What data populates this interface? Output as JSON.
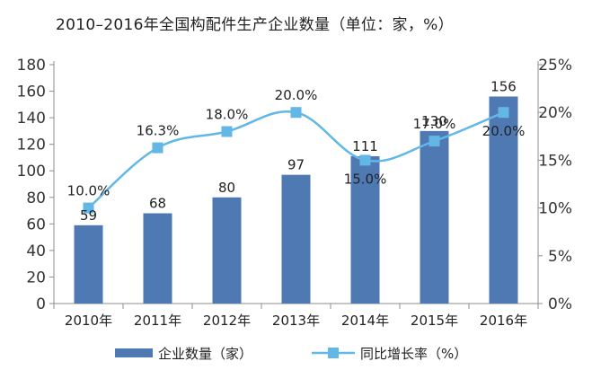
{
  "chart_data": {
    "type": "bar",
    "title": "2010–2016年全国构配件生产企业数量（单位：家，%）",
    "categories": [
      "2010年",
      "2011年",
      "2012年",
      "2013年",
      "2014年",
      "2015年",
      "2016年"
    ],
    "series": [
      {
        "name": "企业数量（家）",
        "type": "bar",
        "axis": "left",
        "values": [
          59,
          68,
          80,
          97,
          111,
          130,
          156
        ],
        "labels": [
          "59",
          "68",
          "80",
          "97",
          "111",
          "130",
          "156"
        ],
        "color": "#4f79b3"
      },
      {
        "name": "同比增长率（%）",
        "type": "line",
        "axis": "right",
        "values": [
          10.0,
          16.3,
          18.0,
          20.0,
          15.0,
          17.0,
          20.0
        ],
        "labels": [
          "10.0%",
          "16.3%",
          "18.0%",
          "20.0%",
          "15.0%",
          "17.0%",
          "20.0%"
        ],
        "color": "#62b7e6"
      }
    ],
    "y_left": {
      "min": 0,
      "max": 180,
      "step": 20,
      "ticks": [
        "0",
        "20",
        "40",
        "60",
        "80",
        "100",
        "120",
        "140",
        "160",
        "180"
      ]
    },
    "y_right": {
      "min": 0,
      "max": 25,
      "step": 5,
      "ticks": [
        "0%",
        "5%",
        "10%",
        "15%",
        "20%",
        "25%"
      ]
    },
    "grid": false,
    "legend_position": "bottom"
  }
}
